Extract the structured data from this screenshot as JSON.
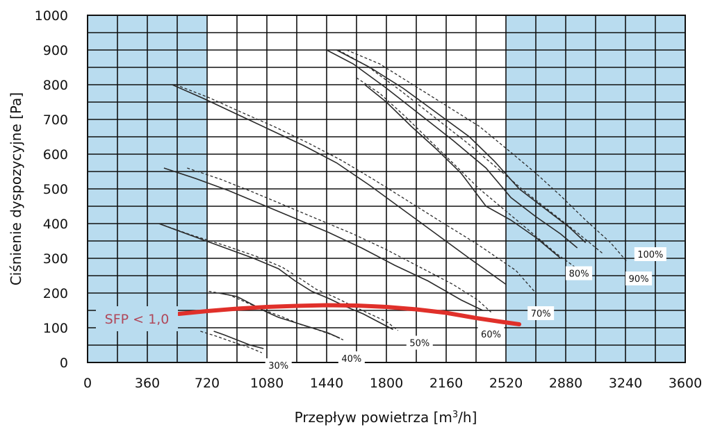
{
  "chart_data": {
    "type": "line",
    "title": "",
    "xlabel": "Przepływ powietrza [m",
    "xlabel_sup": "3",
    "xlabel_suffix": "/h]",
    "ylabel": "Ciśnienie dyspozycyjne [Pa]",
    "xlim": [
      0,
      3600
    ],
    "ylim": [
      0,
      1000
    ],
    "x_ticks": [
      "0",
      "360",
      "720",
      "1080",
      "1440",
      "1800",
      "2160",
      "2520",
      "2880",
      "3240",
      "3600"
    ],
    "y_ticks": [
      "0",
      "100",
      "200",
      "300",
      "400",
      "500",
      "600",
      "700",
      "800",
      "900",
      "1000"
    ],
    "grid": true,
    "grid_x_step": 180,
    "grid_y_step": 50,
    "shaded_regions": [
      {
        "x0": 0,
        "x1": 720,
        "color": "#b9dcef"
      },
      {
        "x0": 2520,
        "x1": 3600,
        "color": "#b9dcef"
      }
    ],
    "colors": {
      "curve": "#2a2a2a",
      "sfp_line": "#e0302a",
      "sfp_text": "#b0485a",
      "shade": "#b9dcef"
    },
    "curve_labels": [
      {
        "text": "30%",
        "x": 1150,
        "y": -10
      },
      {
        "text": "40%",
        "x": 1590,
        "y": 10
      },
      {
        "text": "50%",
        "x": 2000,
        "y": 55
      },
      {
        "text": "60%",
        "x": 2430,
        "y": 80
      },
      {
        "text": "70%",
        "x": 2730,
        "y": 140
      },
      {
        "text": "80%",
        "x": 2960,
        "y": 255
      },
      {
        "text": "90%",
        "x": 3320,
        "y": 240
      },
      {
        "text": "100%",
        "x": 3390,
        "y": 310
      }
    ],
    "series": [
      {
        "name": "30%",
        "style": "solid",
        "x": [
          760,
          820,
          900,
          980,
          1060
        ],
        "y": [
          90,
          80,
          65,
          50,
          40
        ]
      },
      {
        "name": "30%",
        "style": "dashed",
        "x": [
          680,
          780,
          880,
          970,
          1050
        ],
        "y": [
          90,
          75,
          58,
          44,
          28
        ]
      },
      {
        "name": "40%",
        "style": "solid",
        "x": [
          790,
          900,
          1000,
          1080,
          1150,
          1250,
          1350,
          1450,
          1520
        ],
        "y": [
          200,
          190,
          165,
          145,
          130,
          115,
          100,
          85,
          70
        ]
      },
      {
        "name": "40%",
        "style": "dashed",
        "x": [
          730,
          850,
          970,
          1080,
          1180,
          1280,
          1380,
          1470,
          1540
        ],
        "y": [
          205,
          195,
          170,
          148,
          130,
          110,
          95,
          80,
          65
        ]
      },
      {
        "name": "50%",
        "style": "solid",
        "x": [
          430,
          600,
          800,
          1000,
          1150,
          1250,
          1350,
          1450,
          1560,
          1660,
          1760,
          1840
        ],
        "y": [
          400,
          370,
          335,
          300,
          270,
          235,
          205,
          185,
          160,
          140,
          115,
          95
        ]
      },
      {
        "name": "50%",
        "style": "dashed",
        "x": [
          430,
          620,
          820,
          1020,
          1170,
          1270,
          1380,
          1480,
          1600,
          1700,
          1800,
          1870
        ],
        "y": [
          400,
          368,
          338,
          305,
          275,
          245,
          210,
          190,
          162,
          140,
          118,
          92
        ]
      },
      {
        "name": "60%",
        "style": "solid",
        "x": [
          460,
          650,
          850,
          1050,
          1250,
          1450,
          1650,
          1850,
          2050,
          2250,
          2380
        ],
        "y": [
          560,
          530,
          495,
          455,
          415,
          375,
          330,
          280,
          235,
          180,
          150
        ]
      },
      {
        "name": "60%",
        "style": "dashed",
        "x": [
          600,
          800,
          1000,
          1200,
          1400,
          1600,
          1800,
          2000,
          2200,
          2350,
          2430
        ],
        "y": [
          560,
          528,
          490,
          450,
          410,
          370,
          325,
          275,
          225,
          180,
          145
        ]
      },
      {
        "name": "70%",
        "style": "solid",
        "x": [
          510,
          700,
          900,
          1100,
          1300,
          1500,
          1700,
          1900,
          2100,
          2300,
          2520
        ],
        "y": [
          800,
          760,
          715,
          670,
          625,
          575,
          510,
          440,
          370,
          300,
          225
        ]
      },
      {
        "name": "70%",
        "style": "dashed",
        "x": [
          530,
          730,
          930,
          1130,
          1330,
          1530,
          1730,
          1930,
          2130,
          2350,
          2580,
          2700
        ],
        "y": [
          800,
          763,
          720,
          678,
          632,
          582,
          525,
          465,
          405,
          340,
          265,
          200
        ]
      },
      {
        "name": "80%",
        "style": "solid",
        "x": [
          1670,
          1800,
          1950,
          2100,
          2250,
          2400,
          2550,
          2700,
          2850
        ],
        "y": [
          800,
          750,
          680,
          615,
          545,
          450,
          410,
          360,
          300
        ]
      },
      {
        "name": "80%",
        "style": "dashed",
        "x": [
          1620,
          1760,
          1910,
          2060,
          2210,
          2360,
          2510,
          2660,
          2820,
          2950
        ],
        "y": [
          820,
          775,
          710,
          640,
          570,
          500,
          440,
          380,
          315,
          270
        ]
      },
      {
        "name": "90%",
        "style": "solid",
        "x": [
          1440,
          1600,
          1800,
          2000,
          2200,
          2400,
          2550,
          2700,
          2850,
          2950
        ],
        "y": [
          900,
          860,
          790,
          715,
          640,
          560,
          475,
          420,
          370,
          330
        ]
      },
      {
        "name": "90%",
        "style": "dashed",
        "x": [
          1510,
          1680,
          1880,
          2080,
          2280,
          2480,
          2640,
          2800,
          2960,
          3100
        ],
        "y": [
          900,
          855,
          785,
          710,
          635,
          555,
          490,
          430,
          370,
          315
        ]
      },
      {
        "name": "100%",
        "style": "solid",
        "x": [
          1500,
          1700,
          1900,
          2100,
          2300,
          2450,
          2600,
          2750,
          2900,
          3000
        ],
        "y": [
          900,
          850,
          790,
          720,
          650,
          580,
          500,
          445,
          390,
          345
        ]
      },
      {
        "name": "100%",
        "style": "dashed",
        "x": [
          1560,
          1760,
          1960,
          2160,
          2360,
          2550,
          2700,
          2850,
          3000,
          3150,
          3250
        ],
        "y": [
          900,
          860,
          800,
          740,
          680,
          605,
          545,
          480,
          410,
          345,
          290
        ]
      }
    ],
    "sfp_line": {
      "label": "SFP < 1,0",
      "x": [
        550,
        720,
        900,
        1080,
        1260,
        1440,
        1620,
        1800,
        1980,
        2160,
        2340,
        2480,
        2600
      ],
      "y": [
        140,
        148,
        155,
        160,
        163,
        165,
        164,
        160,
        153,
        143,
        128,
        118,
        110
      ]
    }
  }
}
